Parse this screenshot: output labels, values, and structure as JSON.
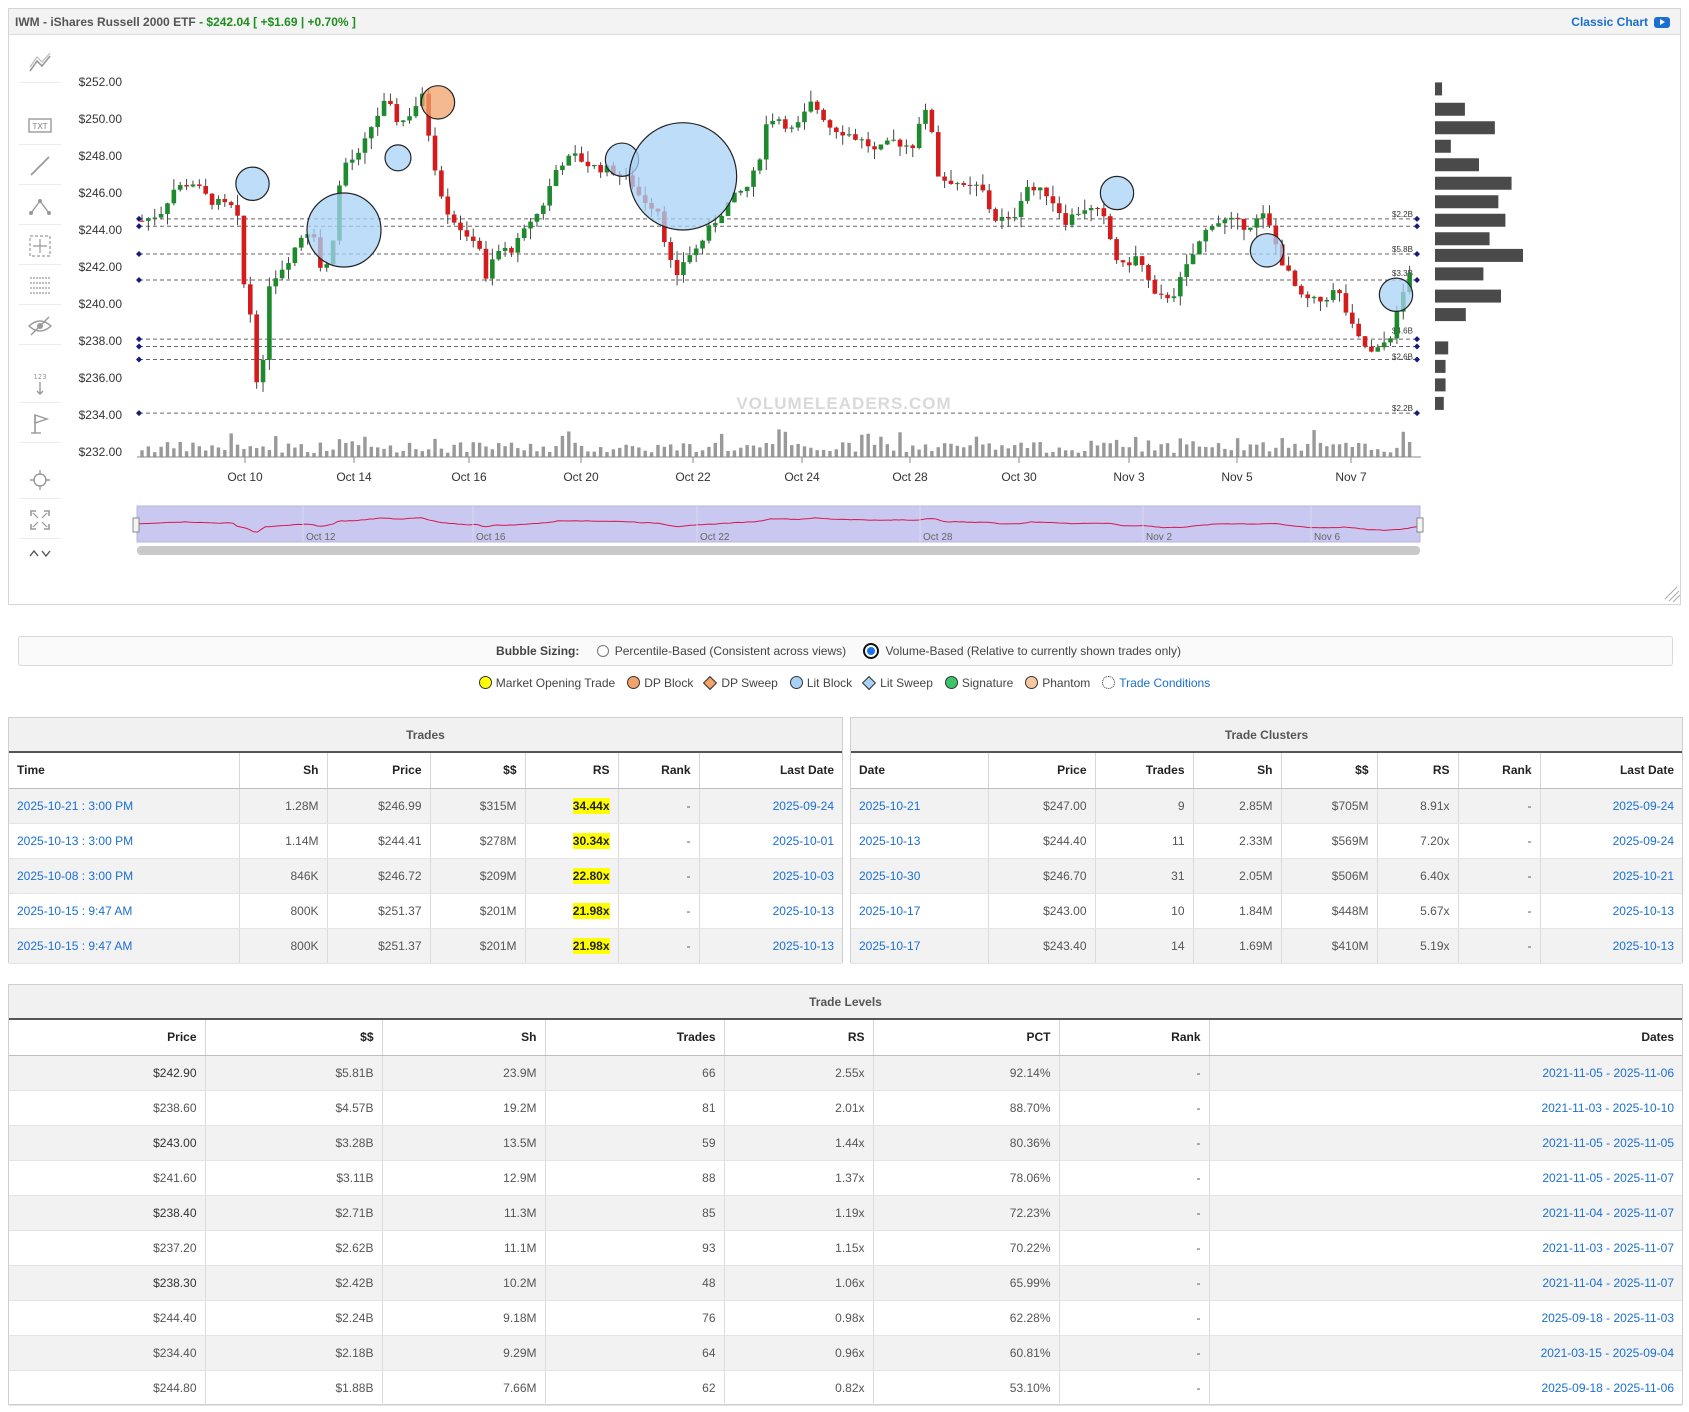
{
  "header": {
    "title": "IWM - iShares Russell 2000 ETF",
    "price": "- $242.04 [ +$1.69 | +0.70% ]",
    "classic_chart": "Classic Chart"
  },
  "toolbar": {
    "icons": [
      "trend-lines-icon",
      "text-annotation-icon",
      "line-draw-icon",
      "measure-abc-icon",
      "crosshair-box-icon",
      "fibonacci-icon",
      "hide-eye-icon",
      "numbered-levels-icon",
      "flag-icon",
      "zoom-target-icon",
      "fullscreen-icon",
      "scroll-up-down-icon"
    ],
    "text_label": "TXT",
    "num_label": "123"
  },
  "colors": {
    "up": "#1e8a2e",
    "down": "#d41c1c",
    "bubble_fill": "#a8d1f5",
    "dp_block": "#f2a26a",
    "volume": "#999999",
    "profile": "#4a4a4a",
    "navigator_fill": "#c9c8f0",
    "navigator_line": "#d6174f",
    "link": "#1a6fd1",
    "highlight": "#ffff00"
  },
  "chart_data": {
    "type": "candlestick",
    "y_ticks": [
      "$252.00",
      "$250.00",
      "$248.00",
      "$246.00",
      "$244.00",
      "$242.00",
      "$240.00",
      "$238.00",
      "$236.00",
      "$234.00",
      "$232.00"
    ],
    "ylim": [
      232,
      252
    ],
    "x_ticks": [
      "Oct 10",
      "Oct 14",
      "Oct 16",
      "Oct 20",
      "Oct 22",
      "Oct 24",
      "Oct 28",
      "Oct 30",
      "Nov 3",
      "Nov 5",
      "Nov 7"
    ],
    "navigator_ticks": [
      "Oct 12",
      "Oct 16",
      "Oct 22",
      "Oct 28",
      "Nov 2",
      "Nov 6"
    ],
    "watermark": "VolumeLeaders.com",
    "level_labels": [
      "$2.2B",
      "$5.8B",
      "$3.3B",
      "$4.6B",
      "$2.6B",
      "$2.2B"
    ],
    "price_levels": [
      244.6,
      244.2,
      242.7,
      241.3,
      238.1,
      237.7,
      237.0,
      234.1
    ],
    "labeled_levels": [
      {
        "price": 244.6,
        "label": "$2.2B"
      },
      {
        "price": 242.7,
        "label": "$5.8B"
      },
      {
        "price": 241.4,
        "label": "$3.3B"
      },
      {
        "price": 238.3,
        "label": "$4.6B"
      },
      {
        "price": 236.9,
        "label": "$2.6B"
      },
      {
        "price": 234.1,
        "label": "$2.2B"
      }
    ],
    "bubbles": [
      {
        "x": 243.5,
        "price": 246.5,
        "r": 0.45,
        "kind": "lit"
      },
      {
        "x": 335,
        "price": 244.0,
        "r": 1.0,
        "kind": "lit"
      },
      {
        "x": 389,
        "price": 247.9,
        "r": 0.35,
        "kind": "lit"
      },
      {
        "x": 429,
        "price": 250.9,
        "r": 0.45,
        "kind": "dp"
      },
      {
        "x": 613,
        "price": 247.8,
        "r": 0.45,
        "kind": "lit"
      },
      {
        "x": 674,
        "price": 246.9,
        "r": 1.45,
        "kind": "lit"
      },
      {
        "x": 1108,
        "price": 246.0,
        "r": 0.45,
        "kind": "lit"
      },
      {
        "x": 1258,
        "price": 242.9,
        "r": 0.45,
        "kind": "lit"
      },
      {
        "x": 1387,
        "price": 240.5,
        "r": 0.45,
        "kind": "lit"
      }
    ],
    "profile_bars": [
      {
        "price": 251.6,
        "v": 0.08
      },
      {
        "price": 250.5,
        "v": 0.34
      },
      {
        "price": 249.5,
        "v": 0.68
      },
      {
        "price": 248.5,
        "v": 0.18
      },
      {
        "price": 247.5,
        "v": 0.5
      },
      {
        "price": 246.5,
        "v": 0.87
      },
      {
        "price": 245.5,
        "v": 0.72
      },
      {
        "price": 244.5,
        "v": 0.8
      },
      {
        "price": 243.5,
        "v": 0.62
      },
      {
        "price": 242.6,
        "v": 1.0
      },
      {
        "price": 241.6,
        "v": 0.55
      },
      {
        "price": 240.4,
        "v": 0.75
      },
      {
        "price": 239.4,
        "v": 0.35
      },
      {
        "price": 237.6,
        "v": 0.15
      },
      {
        "price": 236.6,
        "v": 0.12
      },
      {
        "price": 235.6,
        "v": 0.12
      },
      {
        "price": 234.6,
        "v": 0.1
      }
    ]
  },
  "bubble_sizing": {
    "label": "Bubble Sizing:",
    "options": [
      "Percentile-Based (Consistent across views)",
      "Volume-Based (Relative to currently shown trades only)"
    ],
    "selected": 1
  },
  "legend": [
    {
      "label": "Market Opening Trade",
      "color": "#ffff00",
      "shape": "dot"
    },
    {
      "label": "DP Block",
      "color": "#f2a26a",
      "shape": "dot"
    },
    {
      "label": "DP Sweep",
      "color": "#f2a26a",
      "shape": "diamond"
    },
    {
      "label": "Lit Block",
      "color": "#a8d1f5",
      "shape": "dot"
    },
    {
      "label": "Lit Sweep",
      "color": "#a8d1f5",
      "shape": "diamond"
    },
    {
      "label": "Signature",
      "color": "#3cc46a",
      "shape": "dot"
    },
    {
      "label": "Phantom",
      "color": "#f7c8a0",
      "shape": "dot"
    },
    {
      "label": "Trade Conditions",
      "color": "#ffffff",
      "shape": "gear"
    }
  ],
  "trades": {
    "title": "Trades",
    "columns": [
      "Time",
      "Sh",
      "Price",
      "$$",
      "RS",
      "Rank",
      "Last Date"
    ],
    "rows": [
      [
        "2025-10-21 : 3:00 PM",
        "1.28M",
        "$246.99",
        "$315M",
        "34.44x",
        "-",
        "2025-09-24"
      ],
      [
        "2025-10-13 : 3:00 PM",
        "1.14M",
        "$244.41",
        "$278M",
        "30.34x",
        "-",
        "2025-10-01"
      ],
      [
        "2025-10-08 : 3:00 PM",
        "846K",
        "$246.72",
        "$209M",
        "22.80x",
        "-",
        "2025-10-03"
      ],
      [
        "2025-10-15 : 9:47 AM",
        "800K",
        "$251.37",
        "$201M",
        "21.98x",
        "-",
        "2025-10-13"
      ],
      [
        "2025-10-15 : 9:47 AM",
        "800K",
        "$251.37",
        "$201M",
        "21.98x",
        "-",
        "2025-10-13"
      ]
    ]
  },
  "clusters": {
    "title": "Trade Clusters",
    "columns": [
      "Date",
      "Price",
      "Trades",
      "Sh",
      "$$",
      "RS",
      "Rank",
      "Last Date"
    ],
    "rows": [
      [
        "2025-10-21",
        "$247.00",
        "9",
        "2.85M",
        "$705M",
        "8.91x",
        "-",
        "2025-09-24"
      ],
      [
        "2025-10-13",
        "$244.40",
        "11",
        "2.33M",
        "$569M",
        "7.20x",
        "-",
        "2025-09-24"
      ],
      [
        "2025-10-30",
        "$246.70",
        "31",
        "2.05M",
        "$506M",
        "6.40x",
        "-",
        "2025-10-21"
      ],
      [
        "2025-10-17",
        "$243.00",
        "10",
        "1.84M",
        "$448M",
        "5.67x",
        "-",
        "2025-10-13"
      ],
      [
        "2025-10-17",
        "$243.40",
        "14",
        "1.69M",
        "$410M",
        "5.19x",
        "-",
        "2025-10-13"
      ]
    ]
  },
  "levels": {
    "title": "Trade Levels",
    "columns": [
      "Price",
      "$$",
      "Sh",
      "Trades",
      "RS",
      "PCT",
      "Rank",
      "Dates"
    ],
    "rows": [
      [
        "$242.90",
        "$5.81B",
        "23.9M",
        "66",
        "2.55x",
        "92.14%",
        "-",
        "2021-11-05 - 2025-11-06"
      ],
      [
        "$238.60",
        "$4.57B",
        "19.2M",
        "81",
        "2.01x",
        "88.70%",
        "-",
        "2021-11-03 - 2025-10-10"
      ],
      [
        "$243.00",
        "$3.28B",
        "13.5M",
        "59",
        "1.44x",
        "80.36%",
        "-",
        "2021-11-05 - 2025-11-05"
      ],
      [
        "$241.60",
        "$3.11B",
        "12.9M",
        "88",
        "1.37x",
        "78.06%",
        "-",
        "2021-11-05 - 2025-11-07"
      ],
      [
        "$238.40",
        "$2.71B",
        "11.3M",
        "85",
        "1.19x",
        "72.23%",
        "-",
        "2021-11-04 - 2025-11-07"
      ],
      [
        "$237.20",
        "$2.62B",
        "11.1M",
        "93",
        "1.15x",
        "70.22%",
        "-",
        "2021-11-03 - 2025-11-07"
      ],
      [
        "$238.30",
        "$2.42B",
        "10.2M",
        "48",
        "1.06x",
        "65.99%",
        "-",
        "2021-11-04 - 2025-11-07"
      ],
      [
        "$244.40",
        "$2.24B",
        "9.18M",
        "76",
        "0.98x",
        "62.28%",
        "-",
        "2025-09-18 - 2025-11-03"
      ],
      [
        "$234.40",
        "$2.18B",
        "9.29M",
        "64",
        "0.96x",
        "60.81%",
        "-",
        "2021-03-15 - 2025-09-04"
      ],
      [
        "$244.80",
        "$1.88B",
        "7.66M",
        "62",
        "0.82x",
        "53.10%",
        "-",
        "2025-09-18 - 2025-11-06"
      ]
    ]
  }
}
